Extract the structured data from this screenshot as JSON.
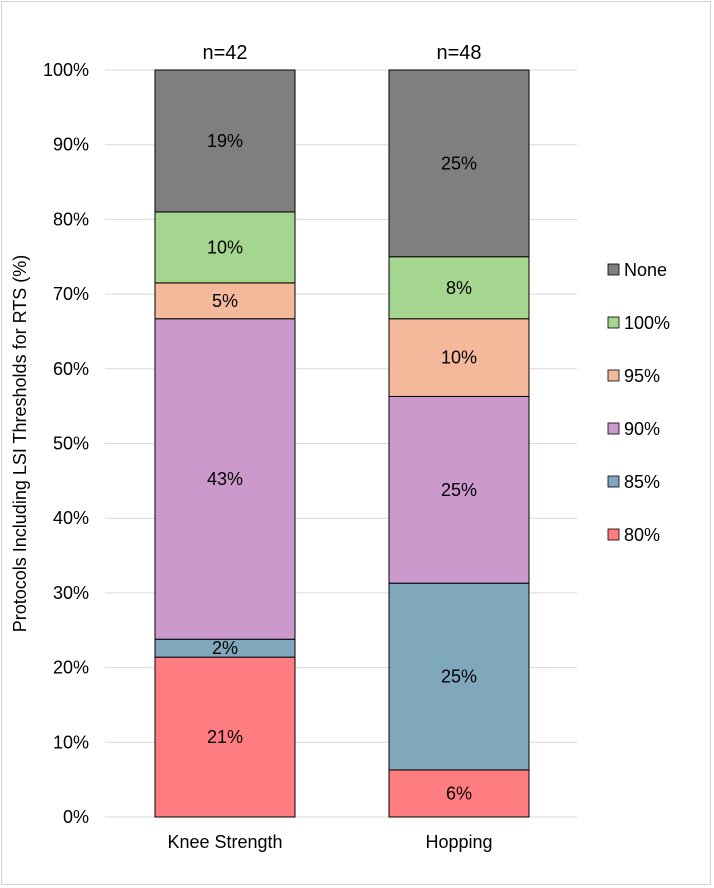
{
  "chart_data": {
    "type": "bar",
    "stacked": true,
    "categories": [
      "Knee Strength",
      "Hopping"
    ],
    "category_annotations": [
      "n=42",
      "n=48"
    ],
    "ylabel": "Protocols Including LSI Thresholds for RTS (%)",
    "ylim": [
      0,
      100
    ],
    "yticks": [
      "0%",
      "10%",
      "20%",
      "30%",
      "40%",
      "50%",
      "60%",
      "70%",
      "80%",
      "90%",
      "100%"
    ],
    "grid": true,
    "legend_position": "right",
    "series": [
      {
        "name": "80%",
        "color": "#ff7c80",
        "values": [
          21.4,
          6.3
        ],
        "labels": [
          "21%",
          "6%"
        ]
      },
      {
        "name": "85%",
        "color": "#7fa8bd",
        "values": [
          2.4,
          25.0
        ],
        "labels": [
          "2%",
          "25%"
        ]
      },
      {
        "name": "90%",
        "color": "#cc99cc",
        "values": [
          42.9,
          25.0
        ],
        "labels": [
          "43%",
          "25%"
        ]
      },
      {
        "name": "95%",
        "color": "#f4b99a",
        "values": [
          4.8,
          10.4
        ],
        "labels": [
          "5%",
          "10%"
        ]
      },
      {
        "name": "100%",
        "color": "#a4d68f",
        "values": [
          9.5,
          8.3
        ],
        "labels": [
          "10%",
          "8%"
        ]
      },
      {
        "name": "None",
        "color": "#7f7f7f",
        "values": [
          19.0,
          25.0
        ],
        "labels": [
          "19%",
          "25%"
        ]
      }
    ]
  }
}
